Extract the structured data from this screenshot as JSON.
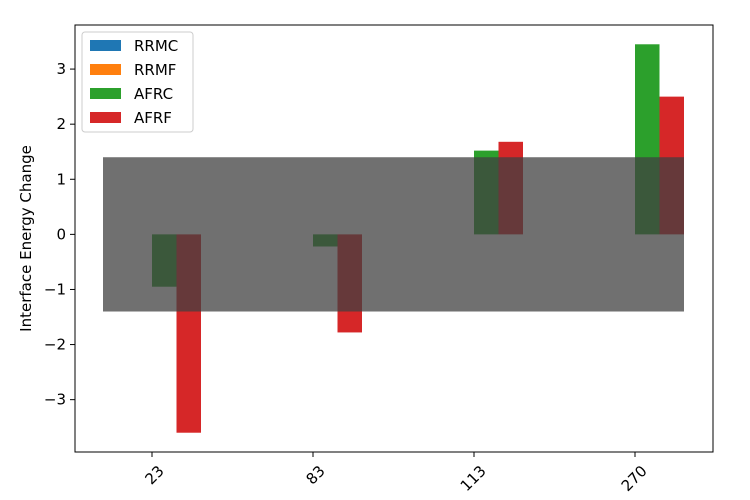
{
  "chart_data": {
    "type": "bar",
    "title": "",
    "xlabel": "",
    "ylabel": "Interface Energy Change",
    "categories": [
      "23",
      "83",
      "113",
      "270"
    ],
    "series": [
      {
        "name": "RRMC",
        "color": "#1f77b4",
        "values": [
          0,
          0,
          0,
          0
        ]
      },
      {
        "name": "RRMF",
        "color": "#ff7f0e",
        "values": [
          0,
          0,
          0,
          0
        ]
      },
      {
        "name": "AFRC",
        "color": "#2ca02c",
        "values": [
          -0.95,
          -0.22,
          1.52,
          3.45
        ]
      },
      {
        "name": "AFRF",
        "color": "#d62728",
        "values": [
          -3.6,
          -1.78,
          1.68,
          2.5
        ]
      }
    ],
    "ylim": [
      -3.95,
      3.8
    ],
    "yticks": [
      -3,
      -2,
      -1,
      0,
      1,
      2,
      3
    ],
    "yticklabels": [
      "−3",
      "−2",
      "−1",
      "0",
      "1",
      "2",
      "3"
    ],
    "shaded_band": {
      "y_range": [
        -1.4,
        1.4
      ],
      "color": "#404040",
      "opacity": 0.75
    },
    "legend_position": "top-left",
    "grid": false,
    "xtick_rotation": -45
  }
}
